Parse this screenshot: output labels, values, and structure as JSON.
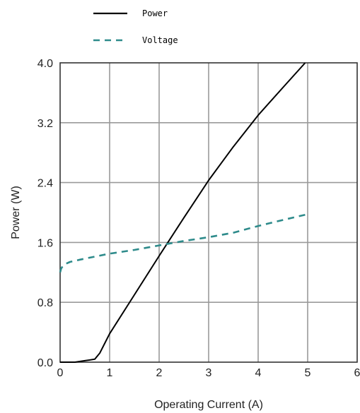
{
  "chart_data": {
    "type": "line",
    "title": "",
    "xlabel": "Operating Current (A)",
    "ylabel": "Power (W)",
    "xlim": [
      0,
      6
    ],
    "ylim": [
      0,
      4.0
    ],
    "xticks": [
      "0",
      "1",
      "2",
      "3",
      "4",
      "5",
      "6"
    ],
    "yticks": [
      "0.0",
      "0.8",
      "1.6",
      "2.4",
      "3.2",
      "4.0"
    ],
    "grid": true,
    "legend_position": "top-left, above plot",
    "series": [
      {
        "name": "Power",
        "style": "solid",
        "color": "#000000",
        "x": [
          0,
          0.3,
          0.5,
          0.7,
          0.8,
          0.9,
          1.0,
          1.5,
          2.0,
          2.5,
          3.0,
          3.5,
          4.0,
          4.5,
          4.95
        ],
        "y": [
          0.0,
          0.0,
          0.02,
          0.04,
          0.12,
          0.25,
          0.38,
          0.9,
          1.42,
          1.93,
          2.43,
          2.88,
          3.3,
          3.67,
          4.0
        ]
      },
      {
        "name": "Voltage",
        "style": "dashed",
        "color": "#2e8b8b",
        "x": [
          0,
          0.02,
          0.05,
          0.1,
          0.2,
          0.4,
          0.7,
          1.0,
          1.5,
          2.0,
          2.5,
          3.0,
          3.5,
          4.0,
          4.5,
          4.95
        ],
        "y": [
          1.2,
          1.25,
          1.28,
          1.31,
          1.34,
          1.37,
          1.41,
          1.45,
          1.5,
          1.56,
          1.62,
          1.67,
          1.73,
          1.82,
          1.9,
          1.97
        ]
      }
    ]
  }
}
